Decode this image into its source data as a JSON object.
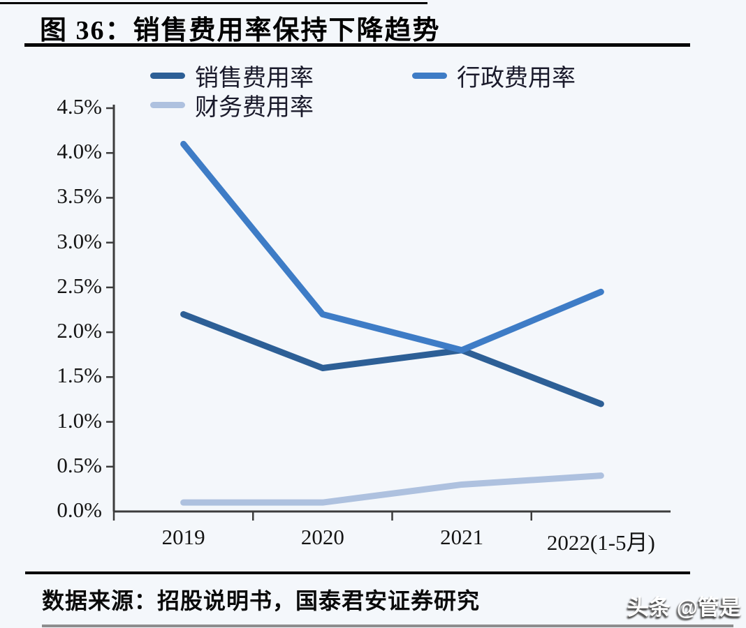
{
  "figure": {
    "title": "图 36：销售费用率保持下降趋势",
    "source": "数据来源：招股说明书，国泰君安证券研究",
    "watermark": "头条 @管是"
  },
  "chart_data": {
    "type": "line",
    "categories": [
      "2019",
      "2020",
      "2021",
      "2022(1-5月)"
    ],
    "series": [
      {
        "name": "销售费用率",
        "values": [
          2.2,
          1.6,
          1.8,
          1.2
        ],
        "color": "#2D5F96"
      },
      {
        "name": "行政费用率",
        "values": [
          4.1,
          2.2,
          1.8,
          2.45
        ],
        "color": "#3E7CC6"
      },
      {
        "name": "财务费用率",
        "values": [
          0.1,
          0.1,
          0.3,
          0.4
        ],
        "color": "#AEC1DF"
      }
    ],
    "title": "",
    "xlabel": "",
    "ylabel": "",
    "ylim": [
      0,
      4.5
    ],
    "ytick_step": 0.5,
    "ytick_labels": [
      "0.0%",
      "0.5%",
      "1.0%",
      "1.5%",
      "2.0%",
      "2.5%",
      "3.0%",
      "3.5%",
      "4.0%",
      "4.5%"
    ],
    "grid": false,
    "legend_position": "top"
  },
  "colors": {
    "background": "#F4F7FB",
    "axis": "#3C3C3C",
    "rule": "#000000",
    "tick_text": "#141414"
  }
}
